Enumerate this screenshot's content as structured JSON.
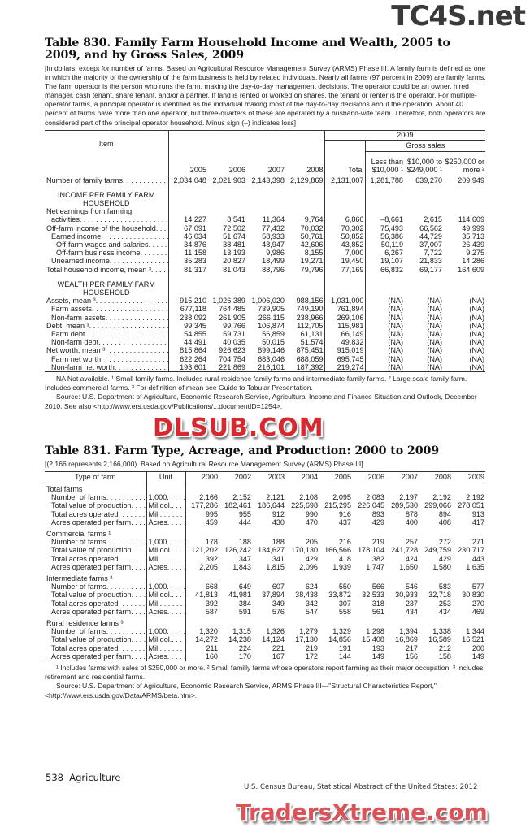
{
  "watermarks": {
    "top": "TC4S.net",
    "middle": "DLSUB.COM",
    "bottom": "TradersXtreme.com"
  },
  "t830": {
    "title": "Table 830. Family Farm Household Income and Wealth, 2005 to 2009, and by Gross Sales, 2009",
    "note": "[In dollars, except for number of farms. Based on Agricultural Resource Management Survey (ARMS) Phase III. A family farm is defined as one in which the majority of the ownership of the farm business is held by related individuals. Nearly all farms (97 percent in 2009) are family farms. The farm operator is the person who runs the farm, making the day-to-day management decisions. The operator could be an owner, hired manager, cash tenant, share tenant, and/or a partner. If land is rented or worked on shares, the tenant or renter is the operator. For multiple-operator farms, a principal operator is identified as the individual making most of the day-to-day decisions about the operation. About 40 percent of farms have more than one operator, but three-quarters of these are operated by a husband-wife team. Therefore, both operators are considered part of the principal operator household. Minus sign (–) indicates loss]",
    "header": {
      "item": "Item",
      "year_2009": "2009",
      "gross_sales": "Gross sales",
      "cols": [
        "2005",
        "2006",
        "2007",
        "2008",
        "Total",
        "Less than $10,000 ¹",
        "$10,000 to $249,000 ¹",
        "$250,000 or more ²"
      ]
    },
    "rows": [
      {
        "label": "Number of family farms",
        "indent": 0,
        "values": [
          "2,034,048",
          "2,021,903",
          "2,143,398",
          "2,129,869",
          "2,131,007",
          "1,281,788",
          "639,270",
          "209,949"
        ]
      },
      {
        "section": "INCOME PER FAMILY FARM HOUSEHOLD"
      },
      {
        "label": "Net earnings from farming",
        "indent": 0,
        "values": []
      },
      {
        "label": "activities",
        "indent": 1,
        "values": [
          "14,227",
          "8,541",
          "11,364",
          "9,764",
          "6,866",
          "–8,661",
          "2,615",
          "114,609"
        ]
      },
      {
        "label": "Off-farm income of the household",
        "indent": 0,
        "values": [
          "67,091",
          "72,502",
          "77,432",
          "70,032",
          "70,302",
          "75,493",
          "66,562",
          "49,999"
        ]
      },
      {
        "label": "Earned income",
        "indent": 1,
        "values": [
          "46,034",
          "51,674",
          "58,933",
          "50,761",
          "50,852",
          "56,386",
          "44,729",
          "35,713"
        ]
      },
      {
        "label": "Off-farm wages and salaries",
        "indent": 2,
        "values": [
          "34,876",
          "38,481",
          "48,947",
          "42,606",
          "43,852",
          "50,119",
          "37,007",
          "26,439"
        ]
      },
      {
        "label": "Off-farm business income",
        "indent": 2,
        "values": [
          "11,158",
          "13,193",
          "9,986",
          "8,155",
          "7,000",
          "6,267",
          "7,722",
          "9,275"
        ]
      },
      {
        "label": "Unearned income",
        "indent": 1,
        "values": [
          "35,283",
          "20,827",
          "18,499",
          "19,271",
          "19,450",
          "19,107",
          "21,833",
          "14,286"
        ]
      },
      {
        "label": "Total household income, mean ³",
        "indent": 0,
        "values": [
          "81,317",
          "81,043",
          "88,796",
          "79,796",
          "77,169",
          "66,832",
          "69,177",
          "164,609"
        ]
      },
      {
        "section": "WEALTH PER FAMILY FARM HOUSEHOLD"
      },
      {
        "label": "Assets, mean ³",
        "indent": 0,
        "values": [
          "915,210",
          "1,026,389",
          "1,006,020",
          "988,156",
          "1,031,000",
          "(NA)",
          "(NA)",
          "(NA)"
        ]
      },
      {
        "label": "Farm assets",
        "indent": 1,
        "values": [
          "677,118",
          "764,485",
          "739,905",
          "749,190",
          "761,894",
          "(NA)",
          "(NA)",
          "(NA)"
        ]
      },
      {
        "label": "Non-farm assets",
        "indent": 1,
        "values": [
          "238,092",
          "261,905",
          "266,115",
          "238,966",
          "269,106",
          "(NA)",
          "(NA)",
          "(NA)"
        ]
      },
      {
        "label": "Debt, mean ³",
        "indent": 0,
        "values": [
          "99,345",
          "99,766",
          "106,874",
          "112,705",
          "115,981",
          "(NA)",
          "(NA)",
          "(NA)"
        ]
      },
      {
        "label": "Farm debt",
        "indent": 1,
        "values": [
          "54,855",
          "59,731",
          "56,859",
          "61,131",
          "66,149",
          "(NA)",
          "(NA)",
          "(NA)"
        ]
      },
      {
        "label": "Non-farm debt",
        "indent": 1,
        "values": [
          "44,491",
          "40,035",
          "50,015",
          "51,574",
          "49,832",
          "(NA)",
          "(NA)",
          "(NA)"
        ]
      },
      {
        "label": "Net worth, mean ³",
        "indent": 0,
        "values": [
          "815,864",
          "926,623",
          "899,146",
          "875,451",
          "915,019",
          "(NA)",
          "(NA)",
          "(NA)"
        ]
      },
      {
        "label": "Farm net worth",
        "indent": 1,
        "values": [
          "622,264",
          "704,754",
          "683,046",
          "688,059",
          "695,745",
          "(NA)",
          "(NA)",
          "(NA)"
        ]
      },
      {
        "label": "Non-farm net worth",
        "indent": 1,
        "values": [
          "193,601",
          "221,869",
          "216,101",
          "187,392",
          "219,274",
          "(NA)",
          "(NA)",
          "(NA)"
        ]
      }
    ],
    "footnotes": [
      "NA Not available. ¹ Small family farms. Includes rural-residence family farms and intermediate family farms. ² Large scale family farm. Includes commercial farms. ³ For definition of mean see Guide to Tabular Presentation.",
      "Source: U.S. Department of Agriculture, Economic Research Service, Agricultural Income and Finance Situation and Outlook, December 2010. See also <http://www.ers.usda.gov/Publications/...documentID=1254>."
    ]
  },
  "t831": {
    "title": "Table 831. Farm Type, Acreage, and Production: 2000 to 2009",
    "note": "[(2,166 represents 2,166,000). Based on Agricultural Resource Management Survey (ARMS) Phase III]",
    "header": {
      "type": "Type of farm",
      "unit": "Unit",
      "years": [
        "2000",
        "2002",
        "2003",
        "2004",
        "2005",
        "2006",
        "2007",
        "2008",
        "2009"
      ]
    },
    "groups": [
      {
        "name": "Total farms",
        "rows": [
          {
            "label": "Number of farms",
            "unit": "1,000",
            "values": [
              "2,166",
              "2,152",
              "2,121",
              "2,108",
              "2,095",
              "2,083",
              "2,197",
              "2,192",
              "2,192"
            ]
          },
          {
            "label": "Total value of production",
            "unit": "Mil dol.",
            "values": [
              "177,286",
              "182,461",
              "186,644",
              "225,698",
              "215,295",
              "226,045",
              "289,530",
              "299,066",
              "278,051"
            ]
          },
          {
            "label": "Total acres operated",
            "unit": "Mil.",
            "values": [
              "995",
              "955",
              "912",
              "990",
              "916",
              "893",
              "878",
              "894",
              "913"
            ]
          },
          {
            "label": "Acres operated per farm",
            "unit": "Acres",
            "values": [
              "459",
              "444",
              "430",
              "470",
              "437",
              "429",
              "400",
              "408",
              "417"
            ]
          }
        ]
      },
      {
        "name": "Commercial farms ¹",
        "rows": [
          {
            "label": "Number of farms",
            "unit": "1,000",
            "values": [
              "178",
              "188",
              "188",
              "205",
              "216",
              "219",
              "257",
              "272",
              "271"
            ]
          },
          {
            "label": "Total value of production",
            "unit": "Mil dol.",
            "values": [
              "121,202",
              "126,242",
              "134,627",
              "170,130",
              "166,566",
              "178,104",
              "241,728",
              "249,759",
              "230,717"
            ]
          },
          {
            "label": "Total acres operated",
            "unit": "Mil.",
            "values": [
              "392",
              "347",
              "341",
              "429",
              "418",
              "382",
              "424",
              "429",
              "443"
            ]
          },
          {
            "label": "Acres operated per farm",
            "unit": "Acres",
            "values": [
              "2,205",
              "1,843",
              "1,815",
              "2,096",
              "1,939",
              "1,747",
              "1,650",
              "1,580",
              "1,635"
            ]
          }
        ]
      },
      {
        "name": "Intermediate farms ²",
        "rows": [
          {
            "label": "Number of farms",
            "unit": "1,000",
            "values": [
              "668",
              "649",
              "607",
              "624",
              "550",
              "566",
              "546",
              "583",
              "577"
            ]
          },
          {
            "label": "Total value of production",
            "unit": "Mil dol.",
            "values": [
              "41,813",
              "41,981",
              "37,894",
              "38,438",
              "33,872",
              "32,533",
              "30,933",
              "32,718",
              "30,830"
            ]
          },
          {
            "label": "Total acres operated",
            "unit": "Mil.",
            "values": [
              "392",
              "384",
              "349",
              "342",
              "307",
              "318",
              "237",
              "253",
              "270"
            ]
          },
          {
            "label": "Acres operated per farm",
            "unit": "Acres",
            "values": [
              "587",
              "591",
              "576",
              "547",
              "558",
              "561",
              "434",
              "434",
              "469"
            ]
          }
        ]
      },
      {
        "name": "Rural residence farms ³",
        "rows": [
          {
            "label": "Number of farms",
            "unit": "1,000",
            "values": [
              "1,320",
              "1,315",
              "1,326",
              "1,279",
              "1,329",
              "1,298",
              "1,394",
              "1,338",
              "1,344"
            ]
          },
          {
            "label": "Total value of production",
            "unit": "Mil dol.",
            "values": [
              "14,272",
              "14,238",
              "14,124",
              "17,130",
              "14,856",
              "15,408",
              "16,869",
              "16,589",
              "16,521"
            ]
          },
          {
            "label": "Total acres operated",
            "unit": "Mil.",
            "values": [
              "211",
              "224",
              "221",
              "219",
              "191",
              "193",
              "217",
              "212",
              "200"
            ]
          },
          {
            "label": "Acres operated per farm",
            "unit": "Acres",
            "values": [
              "160",
              "170",
              "167",
              "172",
              "144",
              "149",
              "156",
              "158",
              "149"
            ]
          }
        ]
      }
    ],
    "footnotes": [
      "¹ Includes farms with sales of $250,000 or more. ² Small familly farms whose operators report farming as their major occupation. ³ Includes retirement and residential farms.",
      "Source: U.S. Department of Agriculture, Economic Research Service, ARMS Phase III—\"Structural Characteristics Report,\" <http://www.ers.usda.gov/Data/ARMS/beta.htm>."
    ]
  },
  "page_footer": {
    "page": "538  Agriculture",
    "source": "U.S. Census Bureau, Statistical Abstract of the United States: 2012"
  }
}
